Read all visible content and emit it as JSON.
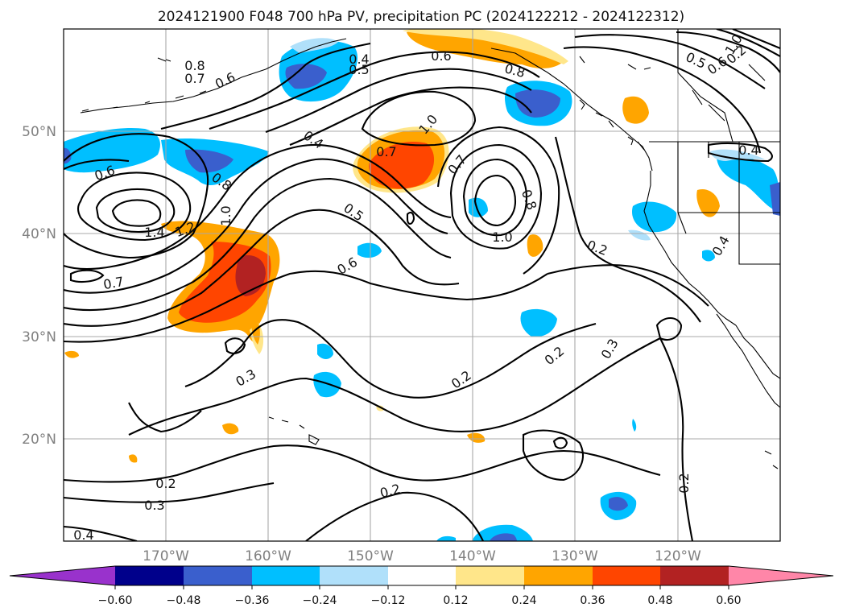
{
  "title": "2024121900 F048 700 hPa PV, precipitation PC (2024122212 - 2024122312)",
  "lat_labels": [
    "50°N",
    "40°N",
    "30°N",
    "20°N"
  ],
  "lon_labels": [
    "170°W",
    "160°W",
    "150°W",
    "140°W",
    "130°W",
    "120°W"
  ],
  "contour_labels": [
    "0.8",
    "0.7",
    "0.6",
    "0.4",
    "0.5",
    "0.6",
    "0.8",
    "1.0",
    "0.5",
    "0.6",
    "0.7",
    "1.0",
    "0.4",
    "0.6",
    "1.4",
    "1.2",
    "1.0",
    "0.8",
    "0.7",
    "0.5",
    "0.6",
    "0.7",
    "0.8",
    "1.0",
    "0.2",
    "0.4",
    "0.3",
    "0.2",
    "0.2",
    "0.3",
    "0.2",
    "0.3",
    "0.2",
    "0.2",
    "0.4",
    "0.4",
    "0.2"
  ],
  "colorbar": {
    "ticks": [
      "−0.60",
      "−0.48",
      "−0.36",
      "−0.24",
      "−0.12",
      "0.12",
      "0.24",
      "0.36",
      "0.48",
      "0.60"
    ],
    "colors": [
      "#9932cc",
      "#00008b",
      "#3a5fcd",
      "#00bfff",
      "#b0e0fa",
      "#ffffff",
      "#ffe68a",
      "#ffa500",
      "#ff4500",
      "#b22222",
      "#ff86a8"
    ]
  },
  "chart_data": {
    "type": "map",
    "projection": "PlateCarree",
    "lon_range": [
      -180,
      -110
    ],
    "lat_range": [
      10,
      60
    ],
    "field_contours": "700 hPa PV (PVU)",
    "field_shaded": "precipitation PC",
    "levels": [
      -0.6,
      -0.48,
      -0.36,
      -0.24,
      -0.12,
      0.12,
      0.24,
      0.36,
      0.48,
      0.6
    ],
    "grid": true
  }
}
